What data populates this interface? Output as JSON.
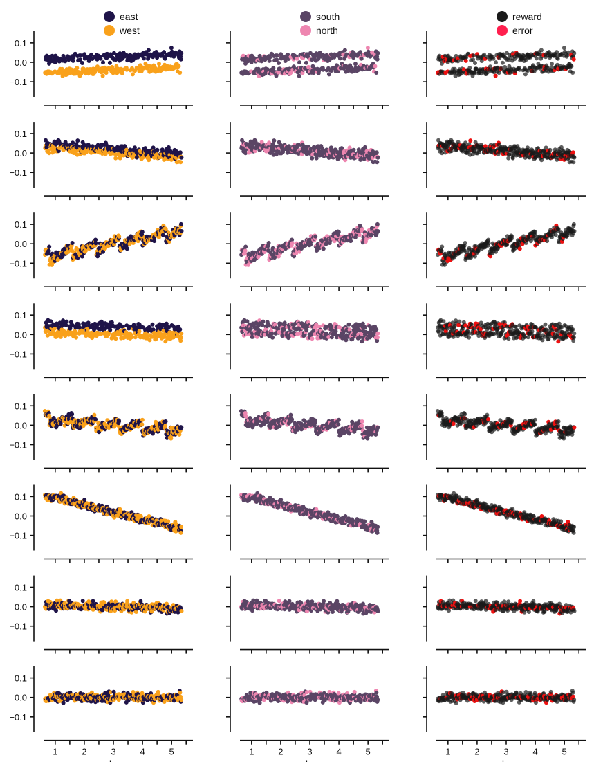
{
  "colors": {
    "east": "#1f1449",
    "west": "#f9a11b",
    "south": "#5a4565",
    "north": "#ee86b0",
    "reward": "#1a1a1a",
    "error": "#ff1f4e",
    "error_point": "#ee1111"
  },
  "legends": [
    {
      "entries": [
        {
          "label": "east",
          "color": "#1f1449"
        },
        {
          "label": "west",
          "color": "#f9a11b"
        }
      ]
    },
    {
      "entries": [
        {
          "label": "south",
          "color": "#5a4565"
        },
        {
          "label": "north",
          "color": "#ee86b0"
        }
      ]
    },
    {
      "entries": [
        {
          "label": "reward",
          "color": "#1a1a1a"
        },
        {
          "label": "error",
          "color": "#ff1f4e"
        }
      ]
    }
  ],
  "chart_data": {
    "type": "scatter",
    "layout": {
      "rows": 8,
      "columns": [
        "east / west",
        "south / north",
        "reward / error"
      ]
    },
    "xlabel": "days",
    "xticks": [
      1,
      2,
      3,
      4,
      5
    ],
    "xlim": [
      0.6,
      5.4
    ],
    "yticks": [
      -0.1,
      0.0,
      0.1
    ],
    "ytick_labels": [
      "−0.1",
      "0.0",
      "0.1"
    ],
    "ylim": [
      -0.16,
      0.16
    ],
    "series": [
      {
        "name": "east",
        "panel_column": 0
      },
      {
        "name": "west",
        "panel_column": 0
      },
      {
        "name": "south",
        "panel_column": 1
      },
      {
        "name": "north",
        "panel_column": 1
      },
      {
        "name": "reward",
        "panel_column": 2
      },
      {
        "name": "error",
        "panel_column": 2
      }
    ],
    "rows": [
      {
        "row": 1,
        "east_level": 0.03,
        "west_level": -0.04,
        "trend": 0.015,
        "north_fraction": 0.15,
        "error_fraction": 0.12
      },
      {
        "row": 2,
        "east_level": 0.02,
        "west_level": 0.0,
        "trend": -0.03,
        "north_fraction": 0.15,
        "error_fraction": 0.12
      },
      {
        "row": 3,
        "east_level": 0.0,
        "west_level": 0.0,
        "trend": 0.07,
        "north_fraction": 0.3,
        "error_fraction": 0.12
      },
      {
        "row": 4,
        "east_level": 0.04,
        "west_level": 0.0,
        "trend": -0.01,
        "north_fraction": 0.25,
        "error_fraction": 0.15
      },
      {
        "row": 5,
        "east_level": 0.0,
        "west_level": 0.0,
        "trend": -0.03,
        "north_fraction": 0.2,
        "error_fraction": 0.12
      },
      {
        "row": 6,
        "east_level": 0.02,
        "west_level": 0.02,
        "trend": -0.09,
        "north_fraction": 0.2,
        "error_fraction": 0.15
      },
      {
        "row": 7,
        "east_level": 0.0,
        "west_level": 0.0,
        "trend": -0.01,
        "north_fraction": 0.25,
        "error_fraction": 0.15
      },
      {
        "row": 8,
        "east_level": 0.0,
        "west_level": 0.0,
        "trend": 0.0,
        "north_fraction": 0.25,
        "error_fraction": 0.15
      }
    ]
  }
}
